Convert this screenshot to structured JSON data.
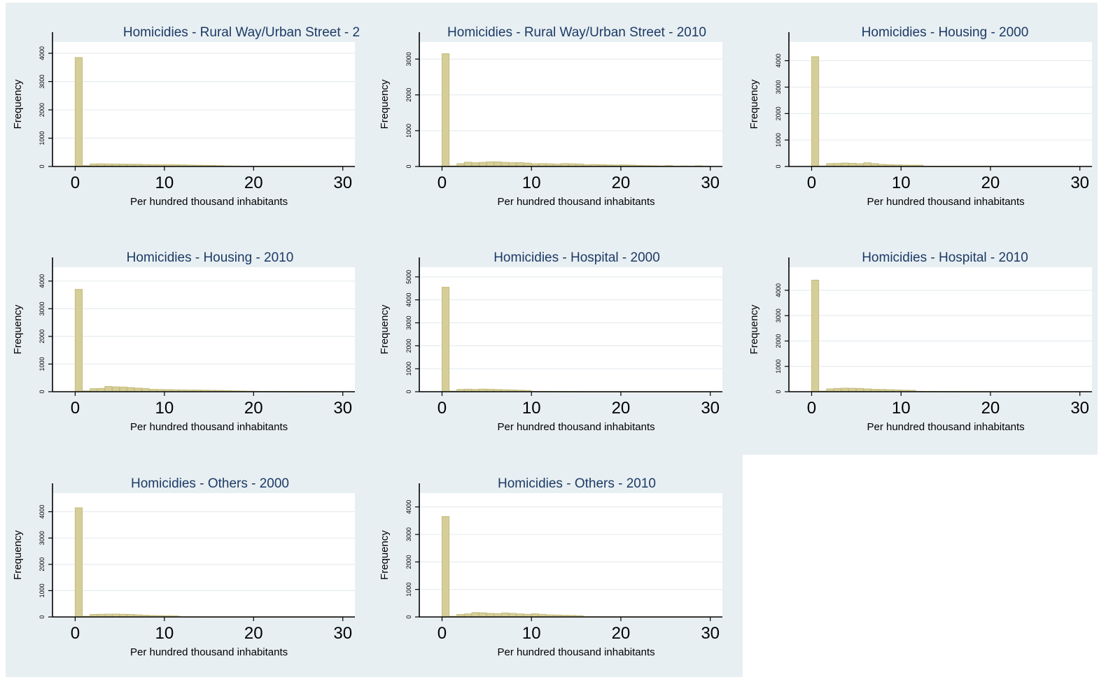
{
  "colors": {
    "background": "#e8eff2",
    "plot_background": "#ffffff",
    "bar_fill": "#d6ce98",
    "bar_edge": "#c4bb7c",
    "title": "#1c3a66",
    "grid": "#e6ecef"
  },
  "chart_data": [
    {
      "type": "bar",
      "title": "Homicidies - Rural Way/Urban Street - 2",
      "xlabel": "Per hundred thousand inhabitants",
      "ylabel": "Frequency",
      "xlim": [
        0,
        30
      ],
      "xticks": [
        0,
        10,
        20,
        30
      ],
      "ylim": [
        0,
        4300
      ],
      "yticks": [
        0,
        1000,
        2000,
        3000,
        4000
      ],
      "grid": true,
      "bin_width": 0.833,
      "values": [
        3850,
        30,
        90,
        95,
        90,
        88,
        85,
        82,
        80,
        70,
        65,
        62,
        65,
        62,
        58,
        50,
        46,
        42,
        40,
        28,
        20,
        15,
        12,
        10,
        8,
        6,
        6,
        5,
        4,
        3,
        3,
        2,
        2,
        2,
        1,
        1
      ]
    },
    {
      "type": "bar",
      "title": "Homicidies - Rural Way/Urban Street - 2010",
      "xlabel": "Per hundred thousand inhabitants",
      "ylabel": "Frequency",
      "xlim": [
        0,
        30
      ],
      "xticks": [
        0,
        10,
        20,
        30
      ],
      "ylim": [
        0,
        3400
      ],
      "yticks": [
        0,
        1000,
        2000,
        3000
      ],
      "grid": true,
      "bin_width": 0.833,
      "values": [
        3150,
        15,
        80,
        120,
        105,
        115,
        130,
        130,
        115,
        105,
        110,
        95,
        75,
        80,
        75,
        65,
        80,
        75,
        70,
        50,
        55,
        50,
        45,
        40,
        45,
        40,
        30,
        25,
        20,
        15,
        25,
        10,
        15,
        10,
        20,
        10
      ]
    },
    {
      "type": "bar",
      "title": "Homicidies - Housing - 2000",
      "xlabel": "Per hundred thousand inhabitants",
      "ylabel": "Frequency",
      "xlim": [
        0,
        30
      ],
      "xticks": [
        0,
        10,
        20,
        30
      ],
      "ylim": [
        0,
        4600
      ],
      "yticks": [
        0,
        1000,
        2000,
        3000,
        4000
      ],
      "grid": true,
      "bin_width": 0.833,
      "values": [
        4150,
        20,
        110,
        115,
        130,
        120,
        105,
        140,
        110,
        80,
        70,
        60,
        55,
        50,
        50,
        10,
        5,
        5,
        4,
        3,
        2,
        2,
        2,
        2,
        1,
        1,
        1,
        1,
        1,
        1,
        1,
        1,
        1,
        1,
        1,
        1
      ]
    },
    {
      "type": "bar",
      "title": "Homicidies - Housing - 2010",
      "xlabel": "Per hundred thousand inhabitants",
      "ylabel": "Frequency",
      "xlim": [
        0,
        30
      ],
      "xticks": [
        0,
        10,
        20,
        30
      ],
      "ylim": [
        0,
        4400
      ],
      "yticks": [
        0,
        1000,
        2000,
        3000,
        4000
      ],
      "grid": true,
      "bin_width": 0.833,
      "values": [
        3700,
        30,
        110,
        120,
        190,
        175,
        170,
        150,
        130,
        115,
        85,
        80,
        75,
        70,
        65,
        60,
        60,
        55,
        50,
        45,
        40,
        30,
        25,
        20,
        15,
        12,
        10,
        8,
        6,
        5,
        4,
        3,
        3,
        2,
        2,
        1
      ]
    },
    {
      "type": "bar",
      "title": "Homicidies - Hospital - 2000",
      "xlabel": "Per hundred thousand inhabitants",
      "ylabel": "Frequency",
      "xlim": [
        0,
        30
      ],
      "xticks": [
        0,
        10,
        20,
        30
      ],
      "ylim": [
        0,
        5300
      ],
      "yticks": [
        0,
        1000,
        2000,
        3000,
        4000,
        5000
      ],
      "grid": true,
      "bin_width": 0.833,
      "values": [
        4550,
        25,
        100,
        110,
        100,
        115,
        105,
        95,
        85,
        75,
        65,
        55,
        15,
        10,
        8,
        6,
        5,
        4,
        3,
        2,
        2,
        2,
        1,
        1,
        1,
        1,
        1,
        1,
        1,
        1,
        1,
        1,
        1,
        1,
        1,
        1
      ]
    },
    {
      "type": "bar",
      "title": "Homicidies - Hospital - 2010",
      "xlabel": "Per hundred thousand inhabitants",
      "ylabel": "Frequency",
      "xlim": [
        0,
        30
      ],
      "xticks": [
        0,
        10,
        20,
        30
      ],
      "ylim": [
        0,
        4800
      ],
      "yticks": [
        0,
        1000,
        2000,
        3000,
        4000
      ],
      "grid": true,
      "bin_width": 0.833,
      "values": [
        4400,
        25,
        110,
        130,
        140,
        135,
        130,
        110,
        95,
        90,
        80,
        70,
        60,
        55,
        15,
        10,
        8,
        6,
        5,
        4,
        3,
        2,
        2,
        1,
        1,
        1,
        1,
        1,
        1,
        1,
        1,
        1,
        1,
        1,
        1,
        1
      ]
    },
    {
      "type": "bar",
      "title": "Homicidies - Others - 2000",
      "xlabel": "Per hundred thousand inhabitants",
      "ylabel": "Frequency",
      "xlim": [
        0,
        30
      ],
      "xticks": [
        0,
        10,
        20,
        30
      ],
      "ylim": [
        0,
        4600
      ],
      "yticks": [
        0,
        1000,
        2000,
        3000,
        4000
      ],
      "grid": true,
      "bin_width": 0.833,
      "values": [
        4150,
        25,
        95,
        100,
        105,
        110,
        100,
        95,
        80,
        65,
        55,
        50,
        45,
        40,
        10,
        5,
        4,
        3,
        2,
        2,
        1,
        1,
        1,
        1,
        1,
        1,
        1,
        1,
        1,
        1,
        1,
        1,
        1,
        1,
        1,
        1
      ]
    },
    {
      "type": "bar",
      "title": "Homicidies - Others - 2010",
      "xlabel": "Per hundred thousand inhabitants",
      "ylabel": "Frequency",
      "xlim": [
        0,
        30
      ],
      "xticks": [
        0,
        10,
        20,
        30
      ],
      "ylim": [
        0,
        4400
      ],
      "yticks": [
        0,
        1000,
        2000,
        3000,
        4000
      ],
      "grid": true,
      "bin_width": 0.833,
      "values": [
        3650,
        25,
        90,
        110,
        160,
        150,
        130,
        120,
        145,
        130,
        110,
        95,
        115,
        95,
        75,
        70,
        60,
        55,
        45,
        10,
        8,
        6,
        5,
        4,
        3,
        2,
        2,
        1,
        1,
        1,
        1,
        1,
        1,
        1,
        1,
        1
      ]
    }
  ]
}
